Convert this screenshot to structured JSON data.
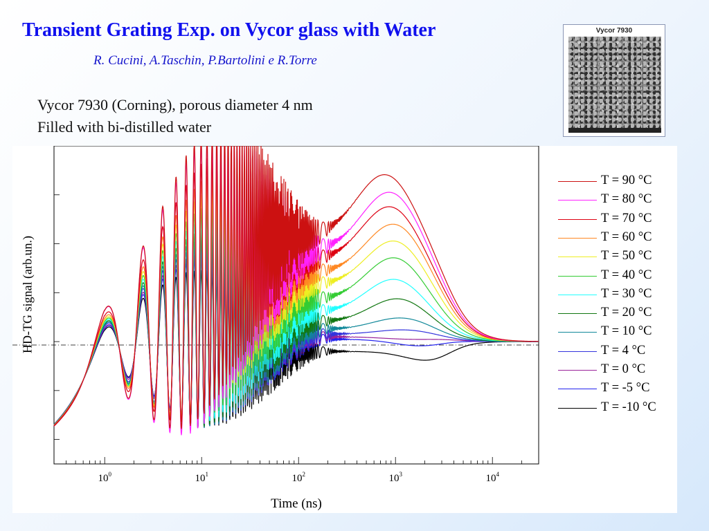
{
  "slide": {
    "title": "Transient Grating Exp. on Vycor glass with Water",
    "authors": "R. Cucini, A.Taschin, P.Bartolini e R.Torre",
    "description": [
      "Vycor 7930 (Corning), porous diameter 4 nm",
      "Filled with bi-distilled water"
    ],
    "image_caption": "Vycor 7930",
    "background_color": "#e4effc",
    "title_color": "#1010ee"
  },
  "chart_data": {
    "type": "line",
    "title": "",
    "xlabel": "Time (ns)",
    "ylabel": "HD-TG signal (arb.un.)",
    "x_scale": "log",
    "xlim": [
      0.3,
      30000
    ],
    "x_ticks": [
      {
        "value": 1,
        "base": "10",
        "exp": "0"
      },
      {
        "value": 10,
        "base": "10",
        "exp": "1"
      },
      {
        "value": 100,
        "base": "10",
        "exp": "2"
      },
      {
        "value": 1000,
        "base": "10",
        "exp": "3"
      },
      {
        "value": 10000,
        "base": "10",
        "exp": "4"
      }
    ],
    "ylim": [
      -0.5,
      0.8
    ],
    "baseline_y": 0,
    "legend_position": "right",
    "grid": false,
    "series": [
      {
        "name": "T = 90 °C",
        "color": "#cc1111",
        "first_peak": 0.76,
        "mid_level": 0.43,
        "late_hump": 0.69,
        "hump_time": 800
      },
      {
        "name": "T = 80 °C",
        "color": "#ff22ff",
        "first_peak": 0.76,
        "mid_level": 0.37,
        "late_hump": 0.62,
        "hump_time": 900
      },
      {
        "name": "T = 70 °C",
        "color": "#dd0011",
        "first_peak": 0.66,
        "mid_level": 0.33,
        "late_hump": 0.56,
        "hump_time": 900
      },
      {
        "name": "T = 60 °C",
        "color": "#ff8822",
        "first_peak": 0.61,
        "mid_level": 0.28,
        "late_hump": 0.49,
        "hump_time": 1000
      },
      {
        "name": "T = 50 °C",
        "color": "#eeee22",
        "first_peak": 0.58,
        "mid_level": 0.23,
        "late_hump": 0.42,
        "hump_time": 1000
      },
      {
        "name": "T = 40 °C",
        "color": "#33cc33",
        "first_peak": 0.56,
        "mid_level": 0.17,
        "late_hump": 0.35,
        "hump_time": 1000
      },
      {
        "name": "T = 30 °C",
        "color": "#22ffff",
        "first_peak": 0.54,
        "mid_level": 0.12,
        "late_hump": 0.26,
        "hump_time": 1000
      },
      {
        "name": "T = 20 °C",
        "color": "#117711",
        "first_peak": 0.52,
        "mid_level": 0.08,
        "late_hump": 0.18,
        "hump_time": 1100
      },
      {
        "name": "T = 10 °C",
        "color": "#118899",
        "first_peak": 0.5,
        "mid_level": 0.05,
        "late_hump": 0.1,
        "hump_time": 1200
      },
      {
        "name": "T = 4 °C",
        "color": "#3333dd",
        "first_peak": 0.48,
        "mid_level": 0.03,
        "late_hump": 0.05,
        "hump_time": 1300
      },
      {
        "name": "T = 0 °C",
        "color": "#992299",
        "first_peak": 0.45,
        "mid_level": 0.02,
        "late_hump": 0.01,
        "hump_time": 1500
      },
      {
        "name": "T = -5 °C",
        "color": "#2222ee",
        "first_peak": 0.43,
        "mid_level": 0.01,
        "late_hump": -0.02,
        "hump_time": 2000
      },
      {
        "name": "T = -10 °C",
        "color": "#000000",
        "first_peak": 0.41,
        "mid_level": -0.04,
        "late_hump": -0.1,
        "hump_time": 3000
      }
    ]
  }
}
